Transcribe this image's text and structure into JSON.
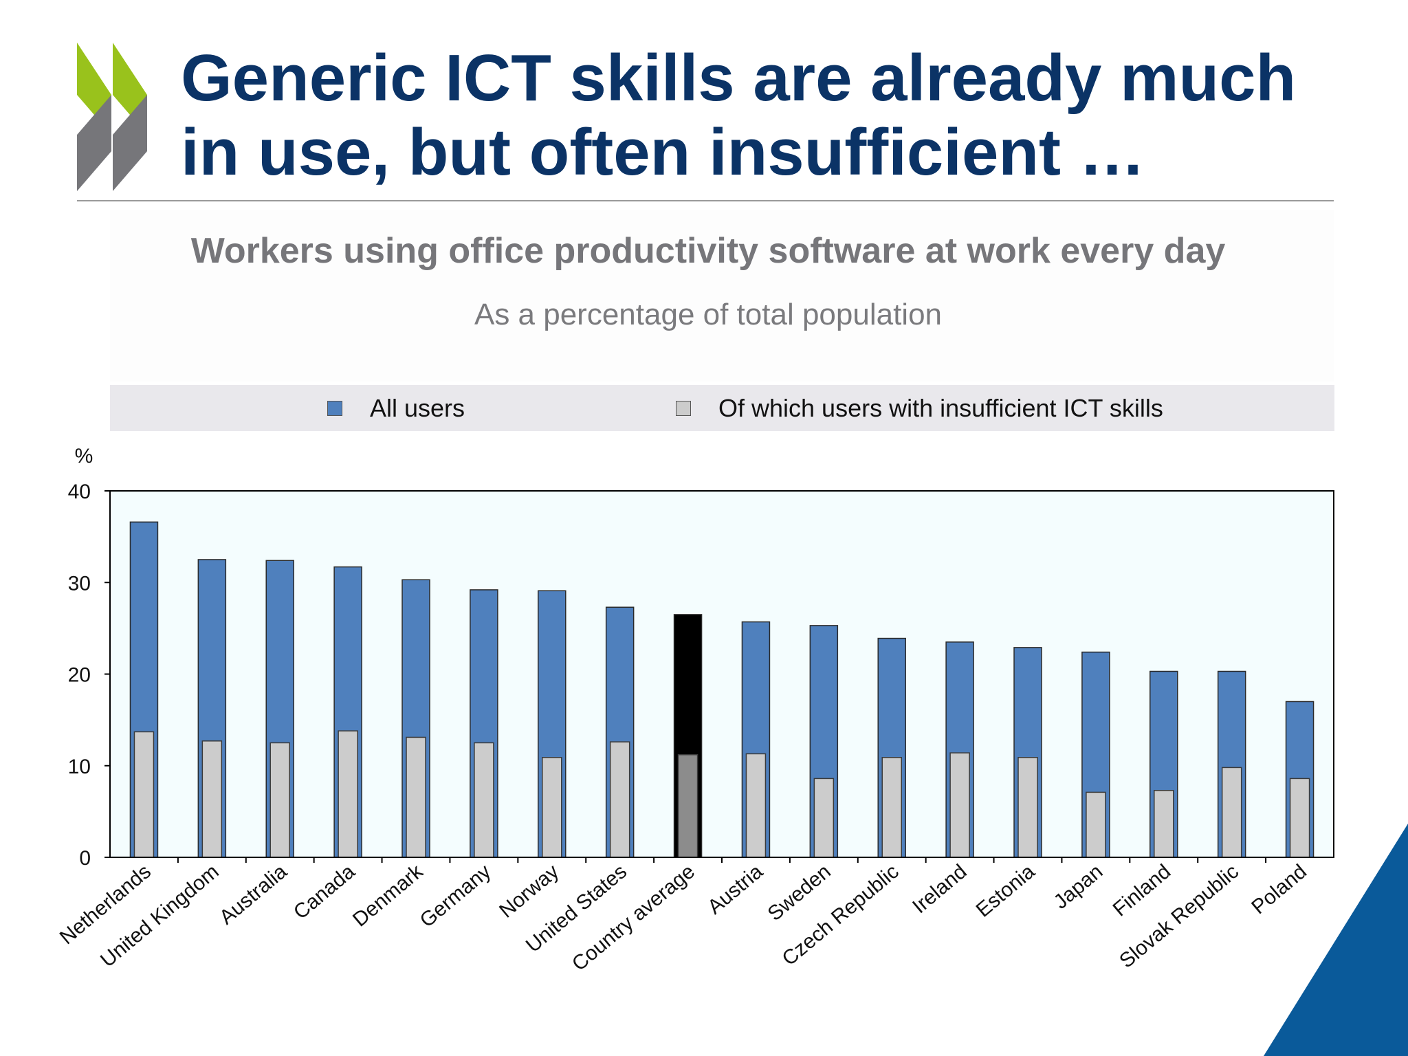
{
  "slide": {
    "title_line1": "Generic ICT skills are already much",
    "title_line2": "in use, but often insufficient …"
  },
  "colors": {
    "title": "#0b3366",
    "all_users": "#4f80bd",
    "insufficient": "#cccccc",
    "average_all": "#000000",
    "average_insufficient": "#8c8c8c",
    "plot_background": "#f4fdfe",
    "logo_green": "#99c21c",
    "logo_grey": "#76767a",
    "corner_blue": "#0a5a9a"
  },
  "chart_data": {
    "type": "bar",
    "title": "Workers using office productivity software at work every day",
    "subtitle": "As a percentage of total population",
    "ylabel": "%",
    "ylim": [
      0,
      40
    ],
    "yticks": [
      0,
      10,
      20,
      30,
      40
    ],
    "grid": false,
    "legend_position": "top",
    "categories": [
      "Netherlands",
      "United Kingdom",
      "Australia",
      "Canada",
      "Denmark",
      "Germany",
      "Norway",
      "United States",
      "Country average",
      "Austria",
      "Sweden",
      "Czech Republic",
      "Ireland",
      "Estonia",
      "Japan",
      "Finland",
      "Slovak Republic",
      "Poland"
    ],
    "highlight_category": "Country average",
    "series": [
      {
        "name": "All users",
        "values": [
          36.6,
          32.5,
          32.4,
          31.7,
          30.3,
          29.2,
          29.1,
          27.3,
          26.5,
          25.7,
          25.3,
          23.9,
          23.5,
          22.9,
          22.4,
          20.3,
          20.3,
          17.0
        ]
      },
      {
        "name": "Of which users with insufficient ICT skills",
        "values": [
          13.7,
          12.7,
          12.5,
          13.8,
          13.1,
          12.5,
          10.9,
          12.6,
          11.2,
          11.3,
          8.6,
          10.9,
          11.4,
          10.9,
          7.1,
          7.3,
          9.8,
          8.6
        ]
      }
    ]
  }
}
